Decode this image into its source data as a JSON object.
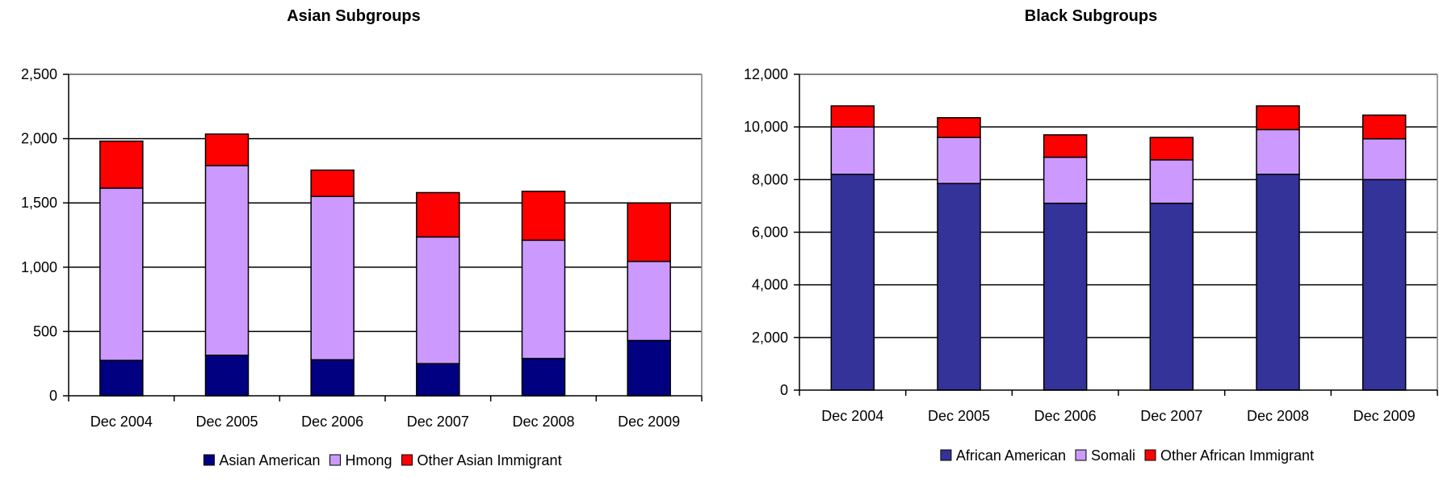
{
  "chart_data": [
    {
      "type": "bar",
      "stacked": true,
      "title": "Asian Subgroups",
      "categories": [
        "Dec 2004",
        "Dec 2005",
        "Dec 2006",
        "Dec 2007",
        "Dec 2008",
        "Dec 2009"
      ],
      "ylim": [
        0,
        2500
      ],
      "yticks": [
        0,
        500,
        1000,
        1500,
        2000,
        2500
      ],
      "ytick_labels": [
        "0",
        "500",
        "1,000",
        "1,500",
        "2,000",
        "2,500"
      ],
      "grid": true,
      "legend_position": "bottom",
      "series": [
        {
          "name": "Asian American",
          "color": "#000080",
          "values": [
            275,
            315,
            280,
            250,
            290,
            430
          ]
        },
        {
          "name": "Hmong",
          "color": "#CC99FF",
          "values": [
            1340,
            1475,
            1270,
            985,
            920,
            615
          ]
        },
        {
          "name": "Other Asian Immigrant",
          "color": "#FF0000",
          "values": [
            365,
            245,
            205,
            345,
            380,
            455
          ]
        }
      ]
    },
    {
      "type": "bar",
      "stacked": true,
      "title": "Black Subgroups",
      "categories": [
        "Dec 2004",
        "Dec 2005",
        "Dec 2006",
        "Dec 2007",
        "Dec 2008",
        "Dec 2009"
      ],
      "ylim": [
        0,
        12000
      ],
      "yticks": [
        0,
        2000,
        4000,
        6000,
        8000,
        10000,
        12000
      ],
      "ytick_labels": [
        "0",
        "2,000",
        "4,000",
        "6,000",
        "8,000",
        "10,000",
        "12,000"
      ],
      "grid": true,
      "legend_position": "bottom",
      "series": [
        {
          "name": "African American",
          "color": "#333399",
          "values": [
            8200,
            7850,
            7100,
            7100,
            8200,
            8000
          ]
        },
        {
          "name": "Somali",
          "color": "#CC99FF",
          "values": [
            1800,
            1750,
            1750,
            1650,
            1700,
            1550
          ]
        },
        {
          "name": "Other African Immigrant",
          "color": "#FF0000",
          "values": [
            800,
            750,
            850,
            850,
            900,
            900
          ]
        }
      ]
    }
  ]
}
